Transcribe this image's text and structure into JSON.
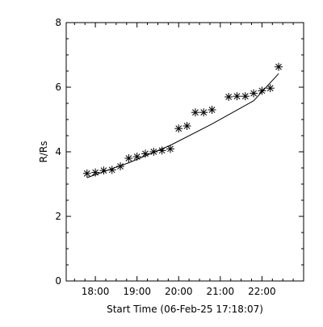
{
  "chart_data": {
    "type": "scatter",
    "xlabel": "Start Time (06-Feb-25 17:18:07)",
    "ylabel": "R/Rs",
    "xlim": [
      "17:18",
      "23:00"
    ],
    "ylim": [
      0,
      8
    ],
    "x_ticks": [
      "18:00",
      "19:00",
      "20:00",
      "21:00",
      "22:00"
    ],
    "y_ticks": [
      "0",
      "2",
      "4",
      "6",
      "8"
    ],
    "grid": false,
    "marker": "asterisk",
    "series": [
      {
        "style": "markers",
        "points": [
          {
            "x": "17:48",
            "y": 3.33
          },
          {
            "x": "18:00",
            "y": 3.36
          },
          {
            "x": "18:12",
            "y": 3.42
          },
          {
            "x": "18:24",
            "y": 3.44
          },
          {
            "x": "18:36",
            "y": 3.55
          },
          {
            "x": "18:48",
            "y": 3.8
          },
          {
            "x": "19:00",
            "y": 3.85
          },
          {
            "x": "19:12",
            "y": 3.94
          },
          {
            "x": "19:24",
            "y": 4.0
          },
          {
            "x": "19:36",
            "y": 4.04
          },
          {
            "x": "19:48",
            "y": 4.09
          },
          {
            "x": "20:00",
            "y": 4.72
          },
          {
            "x": "20:12",
            "y": 4.8
          },
          {
            "x": "20:24",
            "y": 5.22
          },
          {
            "x": "20:36",
            "y": 5.22
          },
          {
            "x": "20:48",
            "y": 5.3
          },
          {
            "x": "21:12",
            "y": 5.7
          },
          {
            "x": "21:24",
            "y": 5.72
          },
          {
            "x": "21:36",
            "y": 5.72
          },
          {
            "x": "21:48",
            "y": 5.81
          },
          {
            "x": "22:00",
            "y": 5.89
          },
          {
            "x": "22:12",
            "y": 5.97
          },
          {
            "x": "22:24",
            "y": 6.63
          }
        ]
      },
      {
        "style": "line",
        "points": [
          {
            "x": "17:48",
            "y": 3.2
          },
          {
            "x": "18:48",
            "y": 3.66
          },
          {
            "x": "19:48",
            "y": 4.2
          },
          {
            "x": "20:48",
            "y": 4.86
          },
          {
            "x": "21:48",
            "y": 5.58
          },
          {
            "x": "22:24",
            "y": 6.42
          }
        ]
      }
    ]
  }
}
